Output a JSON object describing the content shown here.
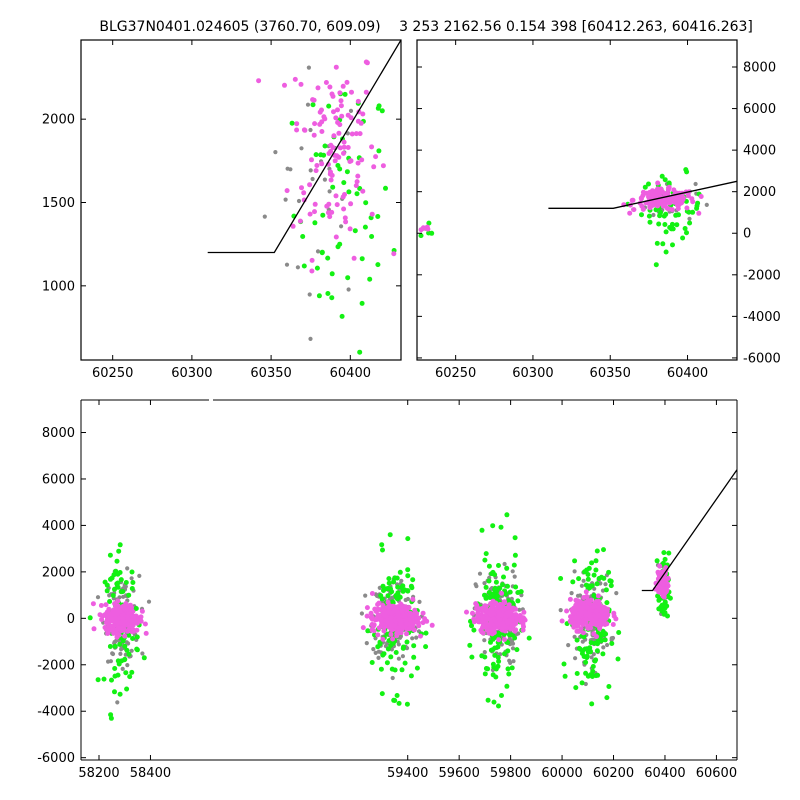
{
  "chart_data": [
    {
      "type": "scatter",
      "title": "BLG37N0401.024605 (3760.70, 609.09)",
      "xlim": [
        60230,
        60432
      ],
      "ylim": [
        555,
        2475
      ],
      "xticks": [
        60250,
        60300,
        60350,
        60400
      ],
      "yticks": [
        1000,
        1500,
        2000
      ],
      "ytick_side": "left",
      "colors": {
        "grey": "#8a8a8a",
        "magenta": "#ee5ee0",
        "green": "#13f113"
      },
      "model_line": [
        [
          60310,
          1200
        ],
        [
          60352,
          1200
        ],
        [
          60432,
          2475
        ]
      ],
      "series": [
        {
          "color": "magenta",
          "center": [
            60390,
            1850
          ],
          "spread": [
            25,
            330
          ],
          "count": 120
        },
        {
          "color": "green",
          "center": [
            60395,
            1450
          ],
          "spread": [
            28,
            420
          ],
          "count": 60
        },
        {
          "color": "grey",
          "center": [
            60380,
            1600
          ],
          "spread": [
            30,
            350
          ],
          "count": 30
        }
      ]
    },
    {
      "type": "scatter",
      "title": "3 253 2162.56 0.154 398 [60412.263, 60416.263]",
      "xlim": [
        60225,
        60432
      ],
      "ylim": [
        -6100,
        9300
      ],
      "xticks": [
        60250,
        60300,
        60350,
        60400
      ],
      "yticks": [
        -6000,
        -4000,
        -2000,
        0,
        2000,
        4000,
        6000,
        8000
      ],
      "ytick_side": "right",
      "colors": {
        "grey": "#8a8a8a",
        "magenta": "#ee5ee0",
        "green": "#13f113"
      },
      "model_line": [
        [
          60310,
          1200
        ],
        [
          60352,
          1200
        ],
        [
          60432,
          2500
        ]
      ],
      "series": [
        {
          "color": "magenta",
          "center": [
            60385,
            1600
          ],
          "spread": [
            18,
            250
          ],
          "count": 150
        },
        {
          "color": "green",
          "center": [
            60390,
            1200
          ],
          "spread": [
            18,
            800
          ],
          "count": 60
        },
        {
          "color": "grey",
          "center": [
            60385,
            1500
          ],
          "spread": [
            18,
            500
          ],
          "count": 30
        },
        {
          "color": "magenta",
          "center": [
            60232,
            250
          ],
          "spread": [
            5,
            80
          ],
          "count": 5
        },
        {
          "color": "green",
          "center": [
            60232,
            0
          ],
          "spread": [
            5,
            400
          ],
          "count": 5
        }
      ]
    },
    {
      "type": "scatter",
      "title": "",
      "xlim": [
        58130,
        60680
      ],
      "ylim": [
        -6100,
        9400
      ],
      "xticks": [
        58200,
        58400,
        59400,
        59600,
        59800,
        60000,
        60200,
        60400,
        60600
      ],
      "yticks": [
        -6000,
        -4000,
        -2000,
        0,
        2000,
        4000,
        6000,
        8000
      ],
      "ytick_side": "left",
      "colors": {
        "grey": "#8a8a8a",
        "magenta": "#ee5ee0",
        "green": "#13f113"
      },
      "model_line": [
        [
          60310,
          1200
        ],
        [
          60352,
          1200
        ],
        [
          60680,
          6400
        ]
      ],
      "series": [
        {
          "color": "grey",
          "center": [
            58290,
            0
          ],
          "spread": [
            60,
            900
          ],
          "count": 120
        },
        {
          "color": "green",
          "center": [
            58290,
            -200
          ],
          "spread": [
            60,
            1400
          ],
          "count": 100
        },
        {
          "color": "magenta",
          "center": [
            58290,
            0
          ],
          "spread": [
            60,
            300
          ],
          "count": 300
        },
        {
          "color": "grey",
          "center": [
            59350,
            0
          ],
          "spread": [
            80,
            900
          ],
          "count": 150
        },
        {
          "color": "green",
          "center": [
            59350,
            -200
          ],
          "spread": [
            80,
            1400
          ],
          "count": 130
        },
        {
          "color": "magenta",
          "center": [
            59350,
            0
          ],
          "spread": [
            80,
            300
          ],
          "count": 350
        },
        {
          "color": "grey",
          "center": [
            59750,
            0
          ],
          "spread": [
            75,
            1000
          ],
          "count": 150
        },
        {
          "color": "green",
          "center": [
            59750,
            -200
          ],
          "spread": [
            75,
            1600
          ],
          "count": 140
        },
        {
          "color": "magenta",
          "center": [
            59750,
            0
          ],
          "spread": [
            75,
            300
          ],
          "count": 350
        },
        {
          "color": "grey",
          "center": [
            60110,
            0
          ],
          "spread": [
            70,
            900
          ],
          "count": 140
        },
        {
          "color": "green",
          "center": [
            60110,
            -200
          ],
          "spread": [
            70,
            1500
          ],
          "count": 130
        },
        {
          "color": "magenta",
          "center": [
            60110,
            150
          ],
          "spread": [
            70,
            300
          ],
          "count": 330
        },
        {
          "color": "magenta",
          "center": [
            60390,
            1600
          ],
          "spread": [
            18,
            300
          ],
          "count": 100
        },
        {
          "color": "green",
          "center": [
            60395,
            1200
          ],
          "spread": [
            18,
            800
          ],
          "count": 50
        },
        {
          "color": "grey",
          "center": [
            60390,
            1500
          ],
          "spread": [
            18,
            500
          ],
          "count": 20
        }
      ]
    }
  ]
}
